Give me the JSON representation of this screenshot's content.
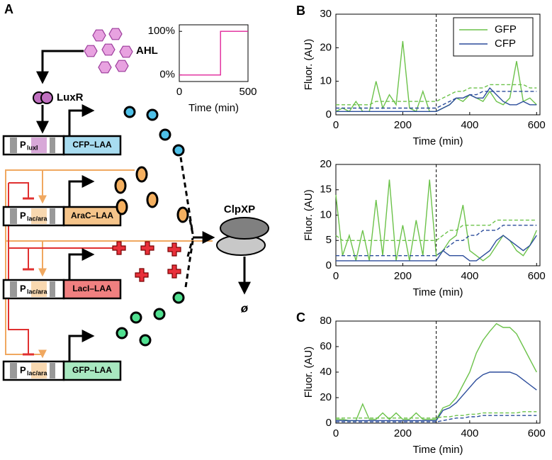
{
  "diagram": {
    "label": "A",
    "ahl": "AHL",
    "luxr": "LuxR",
    "clpxp": "ClpXP",
    "degraded": "ø",
    "genes": [
      {
        "promoter": "P",
        "promoter_sub": "luxI",
        "gene": "CFP–LAA"
      },
      {
        "promoter": "P",
        "promoter_sub": "lac/ara",
        "gene": "AraC–LAA"
      },
      {
        "promoter": "P",
        "promoter_sub": "lac/ara",
        "gene": "LacI–LAA"
      },
      {
        "promoter": "P",
        "promoter_sub": "lac/ara",
        "gene": "GFP–LAA"
      }
    ]
  },
  "chart_data": [
    {
      "type": "line",
      "xlabel": "Time (min)",
      "x": [
        0,
        300,
        300,
        500
      ],
      "xlim": [
        0,
        500
      ],
      "xticks": [
        0,
        500
      ],
      "ylim": [
        -15,
        115
      ],
      "yticks": [
        {
          "value": 0,
          "label": "0%"
        },
        {
          "value": 100,
          "label": "100%"
        }
      ],
      "series": [
        {
          "color": "#e0259a",
          "values": [
            0,
            0,
            100,
            100
          ]
        }
      ]
    },
    {
      "type": "line",
      "panel": "B",
      "xlabel": "Time (min)",
      "ylabel": "Fluor. (AU)",
      "x": [
        0,
        20,
        40,
        60,
        80,
        100,
        120,
        140,
        160,
        180,
        200,
        220,
        240,
        260,
        280,
        300,
        320,
        340,
        360,
        380,
        400,
        420,
        440,
        460,
        480,
        500,
        520,
        540,
        560,
        580,
        600
      ],
      "xlim": [
        0,
        610
      ],
      "xticks": [
        0,
        200,
        400,
        600
      ],
      "ylim": [
        0,
        30
      ],
      "yticks": [
        0,
        10,
        20,
        30
      ],
      "vline": 300,
      "legend": "upper right",
      "series": [
        {
          "name": "GFP",
          "color": "#6cc24a",
          "values": [
            1,
            2,
            1,
            4,
            1,
            1,
            10,
            2,
            6,
            3,
            22,
            2,
            1,
            7,
            1,
            1,
            2,
            3,
            5,
            4,
            6,
            5,
            4,
            7,
            4,
            3,
            5,
            16,
            4,
            5,
            3
          ]
        },
        {
          "name": "CFP",
          "color": "#2b4c9b",
          "values": [
            1,
            1,
            1,
            1,
            1,
            1,
            1,
            1,
            1,
            1,
            1,
            1,
            1,
            1,
            1,
            1,
            2,
            3,
            5,
            5,
            6,
            5,
            5,
            8,
            6,
            4,
            3,
            3,
            4,
            3,
            3
          ]
        },
        {
          "color": "#6cc24a",
          "dash": true,
          "values": [
            3,
            3,
            3,
            3,
            3,
            3,
            4,
            4,
            4,
            4,
            4,
            4,
            4,
            4,
            4,
            4,
            5,
            6,
            7,
            7,
            8,
            8,
            8,
            9,
            9,
            9,
            9,
            9,
            9,
            8,
            8
          ]
        },
        {
          "color": "#2b4c9b",
          "dash": true,
          "values": [
            2,
            2,
            2,
            2,
            2,
            2,
            2,
            2,
            2,
            2,
            2,
            2,
            2,
            2,
            2,
            2,
            3,
            4,
            5,
            5,
            6,
            6,
            7,
            7,
            7,
            7,
            7,
            7,
            7,
            7,
            7
          ]
        }
      ]
    },
    {
      "type": "line",
      "xlabel": "Time (min)",
      "ylabel": "Fluor. (AU)",
      "x": [
        0,
        20,
        40,
        60,
        80,
        100,
        120,
        140,
        160,
        180,
        200,
        220,
        240,
        260,
        280,
        300,
        320,
        340,
        360,
        380,
        400,
        420,
        440,
        460,
        480,
        500,
        520,
        540,
        560,
        580,
        600
      ],
      "xlim": [
        0,
        610
      ],
      "xticks": [
        0,
        200,
        400,
        600
      ],
      "ylim": [
        0,
        20
      ],
      "yticks": [
        0,
        5,
        10,
        15,
        20
      ],
      "vline": 300,
      "series": [
        {
          "color": "#6cc24a",
          "values": [
            14,
            2,
            6,
            1,
            7,
            1,
            13,
            2,
            17,
            1,
            8,
            1,
            9,
            2,
            17,
            2,
            3,
            5,
            6,
            12,
            3,
            2,
            1,
            2,
            4,
            6,
            5,
            3,
            2,
            4,
            7
          ]
        },
        {
          "color": "#2b4c9b",
          "values": [
            1,
            1,
            1,
            1,
            1,
            1,
            1,
            1,
            1,
            1,
            1,
            1,
            1,
            1,
            1,
            1,
            3,
            2,
            2,
            2,
            1,
            1,
            2,
            3,
            5,
            6,
            5,
            4,
            3,
            4,
            6
          ]
        },
        {
          "color": "#6cc24a",
          "dash": true,
          "values": [
            6,
            5,
            5,
            5,
            5,
            5,
            5,
            5,
            5,
            5,
            5,
            5,
            5,
            5,
            5,
            5,
            6,
            7,
            7,
            8,
            8,
            8,
            8,
            8,
            9,
            9,
            9,
            9,
            9,
            9,
            9
          ]
        },
        {
          "color": "#2b4c9b",
          "dash": true,
          "values": [
            2,
            2,
            2,
            2,
            2,
            2,
            2,
            2,
            2,
            2,
            2,
            2,
            2,
            2,
            2,
            2,
            3,
            4,
            5,
            5,
            6,
            6,
            7,
            7,
            7,
            8,
            8,
            8,
            8,
            8,
            8
          ]
        }
      ]
    },
    {
      "type": "line",
      "panel": "C",
      "xlabel": "Time (min)",
      "ylabel": "Fluor. (AU)",
      "x": [
        0,
        20,
        40,
        60,
        80,
        100,
        120,
        140,
        160,
        180,
        200,
        220,
        240,
        260,
        280,
        300,
        320,
        340,
        360,
        380,
        400,
        420,
        440,
        460,
        480,
        500,
        520,
        540,
        560,
        580,
        600
      ],
      "xlim": [
        0,
        610
      ],
      "xticks": [
        0,
        200,
        400,
        600
      ],
      "ylim": [
        0,
        80
      ],
      "yticks": [
        0,
        20,
        40,
        60,
        80
      ],
      "vline": 300,
      "series": [
        {
          "color": "#6cc24a",
          "values": [
            3,
            3,
            2,
            2,
            15,
            3,
            3,
            8,
            3,
            8,
            3,
            3,
            8,
            3,
            3,
            3,
            12,
            14,
            20,
            30,
            40,
            55,
            65,
            72,
            78,
            75,
            75,
            70,
            60,
            50,
            40
          ]
        },
        {
          "color": "#2b4c9b",
          "values": [
            2,
            2,
            2,
            2,
            2,
            2,
            2,
            2,
            2,
            2,
            2,
            2,
            2,
            2,
            2,
            2,
            10,
            12,
            16,
            22,
            28,
            34,
            38,
            40,
            40,
            40,
            40,
            38,
            34,
            30,
            26
          ]
        },
        {
          "color": "#6cc24a",
          "dash": true,
          "values": [
            4,
            4,
            4,
            4,
            4,
            4,
            4,
            4,
            4,
            4,
            4,
            4,
            4,
            4,
            4,
            4,
            5,
            5,
            6,
            6,
            7,
            7,
            8,
            8,
            8,
            8,
            8,
            8,
            9,
            9,
            9
          ]
        },
        {
          "color": "#2b4c9b",
          "dash": true,
          "values": [
            1,
            1,
            1,
            1,
            1,
            1,
            1,
            1,
            1,
            1,
            1,
            1,
            1,
            1,
            1,
            1,
            2,
            3,
            4,
            4,
            5,
            5,
            6,
            6,
            6,
            6,
            6,
            6,
            6,
            6,
            6
          ]
        }
      ]
    }
  ]
}
